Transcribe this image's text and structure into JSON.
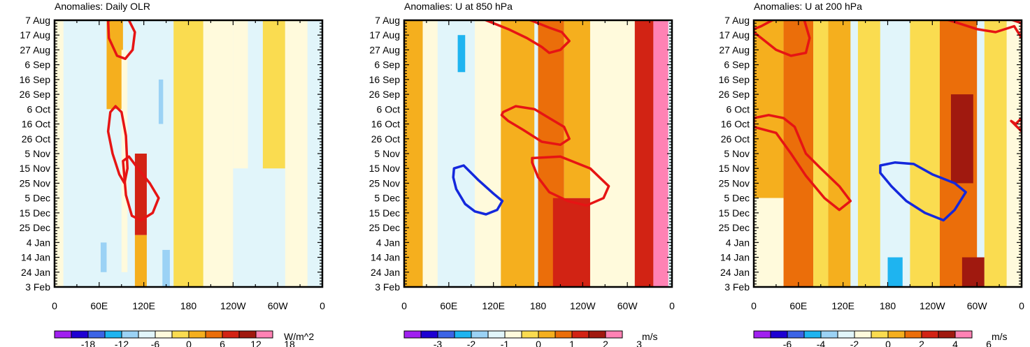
{
  "palette": [
    "#a020f0",
    "#1e00d2",
    "#3c64e6",
    "#1eb4f0",
    "#9bd2f5",
    "#e1f5fa",
    "#fffadc",
    "#fadc50",
    "#f5af1e",
    "#eb6e0a",
    "#d22314",
    "#a0190f",
    "#ff82b4"
  ],
  "contour_colors": {
    "positive": "#e61414",
    "negative": "#1428dc"
  },
  "chart_data": [
    {
      "type": "heatmap",
      "title": "Anomalies: Daily OLR",
      "units": "W/m^2",
      "y_tick_labels": [
        "7 Aug",
        "17 Aug",
        "27 Aug",
        "6 Sep",
        "16 Sep",
        "26 Sep",
        "6 Oct",
        "16 Oct",
        "26 Oct",
        "5 Nov",
        "15 Nov",
        "25 Nov",
        "5 Dec",
        "15 Dec",
        "25 Dec",
        "4 Jan",
        "14 Jan",
        "24 Jan",
        "3 Feb"
      ],
      "x_tick_labels": [
        "0",
        "60E",
        "120E",
        "180",
        "120W",
        "60W",
        "0"
      ],
      "x_ticks_deg": [
        0,
        60,
        120,
        180,
        240,
        300,
        360
      ],
      "colorbar_labels": [
        "-18",
        "-12",
        "-6",
        "0",
        "6",
        "12",
        "18"
      ],
      "levels": [
        -21,
        -18,
        -15,
        -12,
        -9,
        -6,
        -3,
        3,
        6,
        9,
        12,
        15,
        18,
        21
      ],
      "bands": [
        {
          "lon": [
            0,
            12
          ],
          "v": -4,
          "day": [
            0,
            180
          ]
        },
        {
          "lon": [
            12,
            35
          ],
          "v": -7,
          "day": [
            80,
            180
          ]
        },
        {
          "lon": [
            45,
            62
          ],
          "v": -6,
          "day": [
            120,
            185
          ]
        },
        {
          "lon": [
            62,
            70
          ],
          "v": -9,
          "day": [
            150,
            170
          ]
        },
        {
          "lon": [
            70,
            92
          ],
          "v": 4,
          "day": [
            0,
            60
          ]
        },
        {
          "lon": [
            90,
            98
          ],
          "v": -5,
          "day": [
            20,
            170
          ]
        },
        {
          "lon": [
            98,
            108
          ],
          "v": -6,
          "day": [
            30,
            120
          ]
        },
        {
          "lon": [
            108,
            124
          ],
          "v": 10,
          "day": [
            90,
            145
          ]
        },
        {
          "lon": [
            108,
            124
          ],
          "v": 5,
          "day": [
            145,
            185
          ]
        },
        {
          "lon": [
            135,
            148
          ],
          "v": -7,
          "day": [
            30,
            180
          ]
        },
        {
          "lon": [
            140,
            146
          ],
          "v": -11,
          "day": [
            40,
            70
          ]
        },
        {
          "lon": [
            145,
            155
          ],
          "v": -10,
          "day": [
            155,
            180
          ]
        },
        {
          "lon": [
            160,
            200
          ],
          "v": 3,
          "day": [
            0,
            185
          ]
        },
        {
          "lon": [
            200,
            240
          ],
          "v": -3,
          "day": [
            0,
            185
          ]
        },
        {
          "lon": [
            240,
            260
          ],
          "v": -5,
          "day": [
            0,
            100
          ]
        },
        {
          "lon": [
            260,
            280
          ],
          "v": -7,
          "day": [
            0,
            100
          ]
        },
        {
          "lon": [
            280,
            310
          ],
          "v": 3,
          "day": [
            0,
            100
          ]
        },
        {
          "lon": [
            310,
            340
          ],
          "v": -3,
          "day": [
            0,
            185
          ]
        }
      ],
      "contours": [
        {
          "sign": "positive",
          "lon": [
            72,
            73,
            84,
            95,
            105,
            108,
            100,
            85,
            74
          ],
          "day": [
            0,
            12,
            24,
            26,
            20,
            8,
            0,
            -5,
            0
          ]
        },
        {
          "sign": "positive",
          "lon": [
            75,
            82,
            90,
            96,
            98,
            94,
            87,
            78,
            72
          ],
          "day": [
            62,
            58,
            62,
            78,
            100,
            110,
            104,
            90,
            75
          ]
        },
        {
          "sign": "positive",
          "lon": [
            92,
            100,
            112,
            128,
            140,
            132,
            116,
            104,
            96
          ],
          "day": [
            95,
            92,
            100,
            110,
            120,
            130,
            135,
            132,
            118
          ]
        }
      ]
    },
    {
      "type": "heatmap",
      "title": "Anomalies: U at 850 hPa",
      "units": "m/s",
      "y_tick_labels": [
        "7 Aug",
        "17 Aug",
        "27 Aug",
        "6 Sep",
        "16 Sep",
        "26 Sep",
        "6 Oct",
        "16 Oct",
        "26 Oct",
        "5 Nov",
        "15 Nov",
        "25 Nov",
        "5 Dec",
        "15 Dec",
        "25 Dec",
        "4 Jan",
        "14 Jan",
        "24 Jan",
        "3 Feb"
      ],
      "x_tick_labels": [
        "0",
        "60E",
        "120E",
        "180",
        "120W",
        "60W",
        "0"
      ],
      "x_ticks_deg": [
        0,
        60,
        120,
        180,
        240,
        300,
        360
      ],
      "colorbar_labels": [
        "-3",
        "-2",
        "-1",
        "0",
        "1",
        "2",
        "3"
      ],
      "levels": [
        -3.5,
        -3,
        -2.5,
        -2,
        -1.5,
        -1,
        -0.5,
        0.5,
        1,
        1.5,
        2,
        2.5,
        3,
        3.5
      ],
      "bands": [
        {
          "lon": [
            0,
            25
          ],
          "v": 0.8,
          "day": [
            0,
            185
          ]
        },
        {
          "lon": [
            25,
            45
          ],
          "v": -0.7,
          "day": [
            0,
            185
          ]
        },
        {
          "lon": [
            45,
            95
          ],
          "v": -1.2,
          "day": [
            0,
            185
          ]
        },
        {
          "lon": [
            72,
            82
          ],
          "v": -2,
          "day": [
            10,
            35
          ]
        },
        {
          "lon": [
            95,
            130
          ],
          "v": -0.8,
          "day": [
            0,
            185
          ]
        },
        {
          "lon": [
            130,
            175
          ],
          "v": 0.6,
          "day": [
            0,
            185
          ]
        },
        {
          "lon": [
            180,
            215
          ],
          "v": 1.3,
          "day": [
            0,
            185
          ]
        },
        {
          "lon": [
            200,
            250
          ],
          "v": 2,
          "day": [
            120,
            185
          ]
        },
        {
          "lon": [
            215,
            250
          ],
          "v": 0.8,
          "day": [
            0,
            120
          ]
        },
        {
          "lon": [
            250,
            310
          ],
          "v": -0.7,
          "day": [
            0,
            185
          ]
        },
        {
          "lon": [
            310,
            335
          ],
          "v": 1.8,
          "day": [
            0,
            185
          ]
        },
        {
          "lon": [
            335,
            355
          ],
          "v": 2.7,
          "day": [
            0,
            185
          ]
        }
      ],
      "contours": [
        {
          "sign": "positive",
          "lon": [
            110,
            140,
            165,
            185,
            195,
            210,
            222,
            212,
            195,
            180,
            160,
            135,
            118
          ],
          "day": [
            0,
            6,
            12,
            18,
            22,
            20,
            14,
            8,
            5,
            2,
            -2,
            -4,
            0
          ]
        },
        {
          "sign": "positive",
          "lon": [
            133,
            150,
            175,
            195,
            215,
            222,
            210,
            185,
            160,
            140,
            131
          ],
          "day": [
            62,
            58,
            60,
            66,
            72,
            80,
            84,
            82,
            74,
            68,
            64
          ]
        },
        {
          "sign": "positive",
          "lon": [
            172,
            210,
            250,
            275,
            268,
            245,
            220,
            195,
            180,
            172
          ],
          "day": [
            93,
            92,
            100,
            112,
            120,
            125,
            122,
            116,
            106,
            96
          ]
        },
        {
          "sign": "negative",
          "lon": [
            67,
            80,
            100,
            120,
            132,
            125,
            110,
            95,
            82,
            70,
            66
          ],
          "day": [
            100,
            98,
            108,
            117,
            122,
            128,
            131,
            129,
            124,
            114,
            106
          ]
        }
      ]
    },
    {
      "type": "heatmap",
      "title": "Anomalies: U at 200 hPa",
      "units": "m/s",
      "y_tick_labels": [
        "7 Aug",
        "17 Aug",
        "27 Aug",
        "6 Sep",
        "16 Sep",
        "26 Sep",
        "6 Oct",
        "16 Oct",
        "26 Oct",
        "5 Nov",
        "15 Nov",
        "25 Nov",
        "5 Dec",
        "15 Dec",
        "25 Dec",
        "4 Jan",
        "14 Jan",
        "24 Jan",
        "3 Feb"
      ],
      "x_tick_labels": [
        "0",
        "60E",
        "120E",
        "180",
        "120W",
        "60W",
        "0"
      ],
      "x_ticks_deg": [
        0,
        60,
        120,
        180,
        240,
        300,
        360
      ],
      "colorbar_labels": [
        "-6",
        "-4",
        "-2",
        "0",
        "2",
        "4",
        "6"
      ],
      "levels": [
        -7,
        -6,
        -5,
        -4,
        -3,
        -2,
        -1,
        1,
        2,
        3,
        4,
        5,
        6,
        7
      ],
      "bands": [
        {
          "lon": [
            0,
            40
          ],
          "v": 1.5,
          "day": [
            0,
            120
          ]
        },
        {
          "lon": [
            0,
            40
          ],
          "v": -1.2,
          "day": [
            120,
            185
          ]
        },
        {
          "lon": [
            40,
            80
          ],
          "v": 2.2,
          "day": [
            0,
            185
          ]
        },
        {
          "lon": [
            80,
            100
          ],
          "v": 0.5,
          "day": [
            0,
            185
          ]
        },
        {
          "lon": [
            100,
            130
          ],
          "v": 1.5,
          "day": [
            0,
            185
          ]
        },
        {
          "lon": [
            140,
            170
          ],
          "v": 0.5,
          "day": [
            0,
            185
          ]
        },
        {
          "lon": [
            170,
            210
          ],
          "v": -2,
          "day": [
            0,
            185
          ]
        },
        {
          "lon": [
            180,
            200
          ],
          "v": -4,
          "day": [
            160,
            185
          ]
        },
        {
          "lon": [
            210,
            260
          ],
          "v": 0.6,
          "day": [
            0,
            185
          ]
        },
        {
          "lon": [
            250,
            300
          ],
          "v": 3,
          "day": [
            0,
            185
          ]
        },
        {
          "lon": [
            265,
            295
          ],
          "v": 4.5,
          "day": [
            50,
            110
          ]
        },
        {
          "lon": [
            280,
            310
          ],
          "v": 5,
          "day": [
            160,
            185
          ]
        },
        {
          "lon": [
            310,
            340
          ],
          "v": 0.6,
          "day": [
            0,
            185
          ]
        },
        {
          "lon": [
            340,
            360
          ],
          "v": -1.2,
          "day": [
            0,
            185
          ]
        }
      ],
      "contours": [
        {
          "sign": "positive",
          "lon": [
            0,
            30,
            50,
            70,
            75,
            68,
            60,
            45,
            25,
            10,
            0
          ],
          "day": [
            8,
            20,
            24,
            22,
            12,
            0,
            -5,
            -4,
            0,
            4,
            6
          ]
        },
        {
          "sign": "positive",
          "lon": [
            250,
            275,
            300,
            325,
            350,
            360,
            360,
            320,
            300,
            275,
            255
          ],
          "day": [
            -2,
            2,
            6,
            8,
            4,
            12,
            2,
            -5,
            -8,
            -6,
            -3
          ]
        },
        {
          "sign": "positive",
          "lon": [
            0,
            20,
            40,
            55,
            70,
            90,
            115,
            130,
            115,
            95,
            70,
            50,
            30,
            0
          ],
          "day": [
            66,
            64,
            66,
            72,
            90,
            100,
            112,
            122,
            128,
            120,
            105,
            90,
            76,
            72
          ]
        },
        {
          "sign": "positive",
          "lon": [
            346,
            352,
            360,
            360
          ],
          "day": [
            68,
            70,
            66,
            75
          ]
        },
        {
          "sign": "negative",
          "lon": [
            170,
            190,
            215,
            240,
            270,
            285,
            270,
            255,
            230,
            205,
            185,
            170
          ],
          "day": [
            98,
            96,
            97,
            104,
            110,
            116,
            128,
            135,
            130,
            122,
            112,
            103
          ]
        }
      ]
    }
  ]
}
